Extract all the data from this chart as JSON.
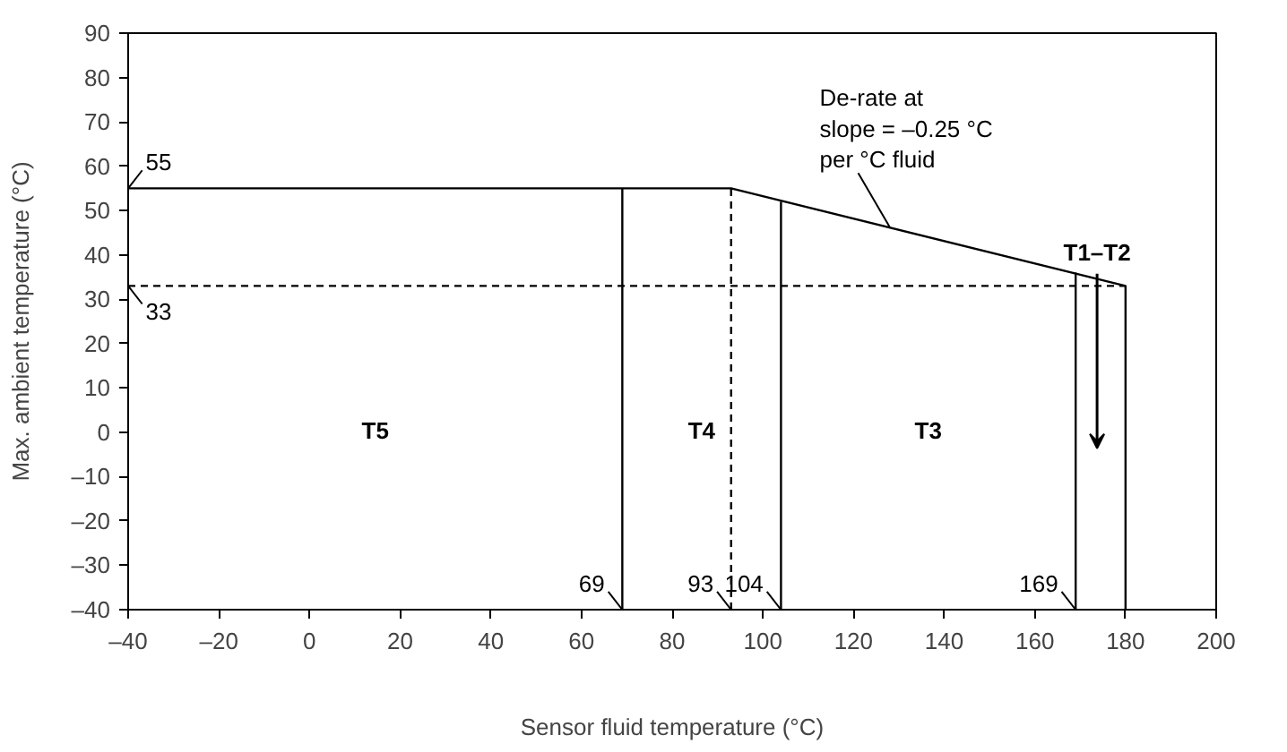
{
  "chart_data": {
    "type": "line",
    "xlabel": "Sensor fluid temperature (°C)",
    "ylabel": "Max. ambient temperature (°C)",
    "xlim": [
      -40,
      200
    ],
    "ylim": [
      -40,
      90
    ],
    "xticks": [
      {
        "value": -40,
        "label": "–40"
      },
      {
        "value": -20,
        "label": "–20"
      },
      0,
      20,
      40,
      60,
      80,
      100,
      120,
      140,
      160,
      180,
      200
    ],
    "yticks": [
      {
        "value": -40,
        "label": "–40"
      },
      {
        "value": -30,
        "label": "–30"
      },
      {
        "value": -20,
        "label": "–20"
      },
      {
        "value": -10,
        "label": "–10"
      },
      0,
      10,
      20,
      30,
      40,
      50,
      60,
      70,
      80,
      90
    ],
    "grid": false,
    "marker": "none",
    "color": "#000000",
    "series": [
      {
        "x": [
          -40,
          93,
          180,
          180
        ],
        "values": [
          55,
          55,
          33,
          -40
        ],
        "line_style": "solid"
      },
      {
        "x": [
          69,
          69
        ],
        "values": [
          -40,
          55
        ],
        "line_style": "solid"
      },
      {
        "x": [
          93,
          93
        ],
        "values": [
          -40,
          55
        ],
        "line_style": "dashed"
      },
      {
        "x": [
          104,
          104
        ],
        "values": [
          -40,
          52
        ],
        "line_style": "solid"
      },
      {
        "x": [
          169,
          169
        ],
        "values": [
          -40,
          36
        ],
        "line_style": "solid"
      },
      {
        "x": [
          -40,
          180
        ],
        "values": [
          33,
          33
        ],
        "line_style": "dashed"
      }
    ],
    "annotations": [
      {
        "text": "55",
        "x": -40,
        "y": 55
      },
      {
        "text": "33",
        "x": -40,
        "y": 33
      },
      {
        "text": "69",
        "x": 69,
        "y": -40
      },
      {
        "text": "93",
        "x": 93,
        "y": -40
      },
      {
        "text": "104",
        "x": 104,
        "y": -40
      },
      {
        "text": "169",
        "x": 169,
        "y": -40
      },
      "T5",
      "T4",
      "T3",
      "T1–T2",
      {
        "text": "De-rate at\nslope = –0.25 °C\nper °C fluid",
        "x": 128,
        "y": 46.25
      }
    ]
  }
}
